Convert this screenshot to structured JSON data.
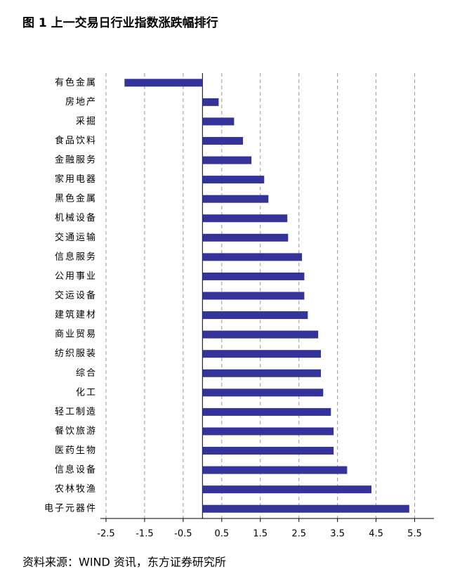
{
  "chart_data": {
    "type": "barh",
    "title": "图 1  上一交易日行业指数涨跌幅排行",
    "source": "资料来源：WIND 资讯，东方证券研究所",
    "categories": [
      "有色金属",
      "房地产",
      "采掘",
      "食品饮料",
      "金融服务",
      "家用电器",
      "黑色金属",
      "机械设备",
      "交通运输",
      "信息服务",
      "公用事业",
      "交运设备",
      "建筑建材",
      "商业贸易",
      "纺织服装",
      "综合",
      "化工",
      "轻工制造",
      "餐饮旅游",
      "医药生物",
      "信息设备",
      "农林牧渔",
      "电子元器件"
    ],
    "values": [
      -2.02,
      0.42,
      0.82,
      1.05,
      1.27,
      1.6,
      1.71,
      2.2,
      2.22,
      2.58,
      2.64,
      2.64,
      2.73,
      3.0,
      3.07,
      3.07,
      3.13,
      3.33,
      3.4,
      3.4,
      3.75,
      4.38,
      5.36
    ],
    "color": "#333399",
    "xlim": [
      -2.7,
      6.0
    ],
    "xticks": [
      -2.5,
      -1.5,
      -0.5,
      0.5,
      1.5,
      2.5,
      3.5,
      4.5,
      5.5
    ],
    "grid": true
  }
}
